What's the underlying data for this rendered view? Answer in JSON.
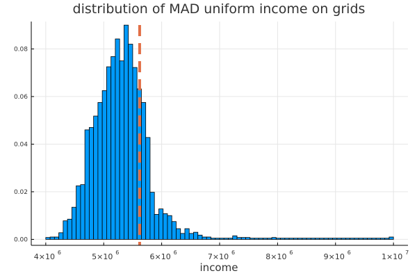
{
  "chart_data": {
    "type": "bar",
    "title": "distribution of MAD uniform income on grids",
    "xlabel": "income",
    "ylabel": "",
    "xlim": [
      3750000,
      10250000
    ],
    "ylim": [
      -0.0025,
      0.0915
    ],
    "grid": true,
    "legend": "none",
    "colors": {
      "bars": "#009AF9",
      "bar_edge": "#000000",
      "mean_line": "#E26F46",
      "grid": "#E6E6E6"
    },
    "xticks": [
      {
        "value": 4000000,
        "mantissa": "4×10",
        "exp": "6"
      },
      {
        "value": 5000000,
        "mantissa": "5×10",
        "exp": "6"
      },
      {
        "value": 6000000,
        "mantissa": "6×10",
        "exp": "6"
      },
      {
        "value": 7000000,
        "mantissa": "7×10",
        "exp": "6"
      },
      {
        "value": 8000000,
        "mantissa": "8×10",
        "exp": "6"
      },
      {
        "value": 9000000,
        "mantissa": "9×10",
        "exp": "6"
      },
      {
        "value": 10000000,
        "mantissa": "1×10",
        "exp": "7"
      }
    ],
    "yticks": [
      {
        "value": 0.0,
        "label": "0.00"
      },
      {
        "value": 0.02,
        "label": "0.02"
      },
      {
        "value": 0.04,
        "label": "0.04"
      },
      {
        "value": 0.06,
        "label": "0.06"
      },
      {
        "value": 0.08,
        "label": "0.08"
      }
    ],
    "bin_start": 4000000,
    "bin_width": 75000,
    "values": [
      0.0008,
      0.001,
      0.001,
      0.0028,
      0.0078,
      0.0085,
      0.0135,
      0.0225,
      0.023,
      0.046,
      0.047,
      0.0518,
      0.0575,
      0.0625,
      0.0725,
      0.0768,
      0.0842,
      0.075,
      0.09,
      0.082,
      0.0722,
      0.0632,
      0.0575,
      0.0428,
      0.0198,
      0.0105,
      0.0128,
      0.0108,
      0.01,
      0.0075,
      0.0045,
      0.0025,
      0.0045,
      0.0025,
      0.003,
      0.0018,
      0.001,
      0.001,
      0.0005,
      0.0005,
      0.0005,
      0.0005,
      0.0005,
      0.0015,
      0.0008,
      0.0008,
      0.0008,
      0.0005,
      0.0005,
      0.0005,
      0.0005,
      0.0005,
      0.0008,
      0.0005,
      0.0005,
      0.0005,
      0.0005,
      0.0005,
      0.0005,
      0.0005,
      0.0005,
      0.0005,
      0.0005,
      0.0005,
      0.0005,
      0.0005,
      0.0005,
      0.0005,
      0.0005,
      0.0005,
      0.0005,
      0.0005,
      0.0005,
      0.0005,
      0.0005,
      0.0005,
      0.0005,
      0.0005,
      0.0005,
      0.001
    ],
    "mean_line_x": 5620000
  }
}
